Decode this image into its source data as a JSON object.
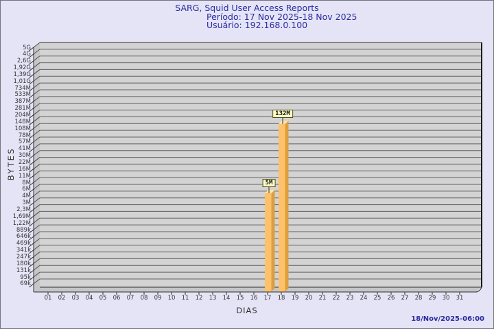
{
  "header": {
    "title": "SARG, Squid User Access Reports",
    "period": "Período: 17 Nov 2025-18 Nov 2025",
    "user": "Usuário: 192.168.0.100"
  },
  "footer": {
    "timestamp": "18/Nov/2025-06:00"
  },
  "chart_data": {
    "type": "bar",
    "title": "SARG, Squid User Access Reports",
    "subtitle": "Período: 17 Nov 2025-18 Nov 2025 / Usuário: 192.168.0.100",
    "xlabel": "DIAS",
    "ylabel": "BYTES",
    "y_scale": "log",
    "y_range_bytes": [
      69000,
      5000000000
    ],
    "grid": "horizontal",
    "legend_position": "none",
    "y_tick_labels": [
      "5G",
      "4G",
      "2,6G",
      "1,92G",
      "1,39G",
      "1,01G",
      "734M",
      "533M",
      "387M",
      "281M",
      "204M",
      "148M",
      "108M",
      "78M",
      "57M",
      "41M",
      "30M",
      "22M",
      "16M",
      "11M",
      "8M",
      "6M",
      "4M",
      "3M",
      "2,3M",
      "1,69M",
      "1,22M",
      "889k",
      "646k",
      "469k",
      "341k",
      "247k",
      "180k",
      "131k",
      "95k",
      "69k"
    ],
    "categories": [
      "01",
      "02",
      "03",
      "04",
      "05",
      "06",
      "07",
      "08",
      "09",
      "10",
      "11",
      "12",
      "13",
      "14",
      "15",
      "16",
      "17",
      "18",
      "19",
      "20",
      "21",
      "22",
      "23",
      "24",
      "25",
      "26",
      "27",
      "28",
      "29",
      "30",
      "31"
    ],
    "bars": [
      {
        "category": "17",
        "label": "5M",
        "value_bytes": 5000000
      },
      {
        "category": "18",
        "label": "132M",
        "value_bytes": 132000000
      }
    ],
    "colors": {
      "background": "#e4e4f6",
      "title_text": "#2a2aa0",
      "plot_bg": "#d3d3d3",
      "wall": "#c6c6c8",
      "gridline": "#606060",
      "frame": "#2f2f2f",
      "bar_front": "#ffc169",
      "bar_side": "#dd9f3e",
      "bar_top": "#ffe5a3",
      "annotation_bg": "#ffffc6",
      "tick_text": "#333333"
    }
  }
}
